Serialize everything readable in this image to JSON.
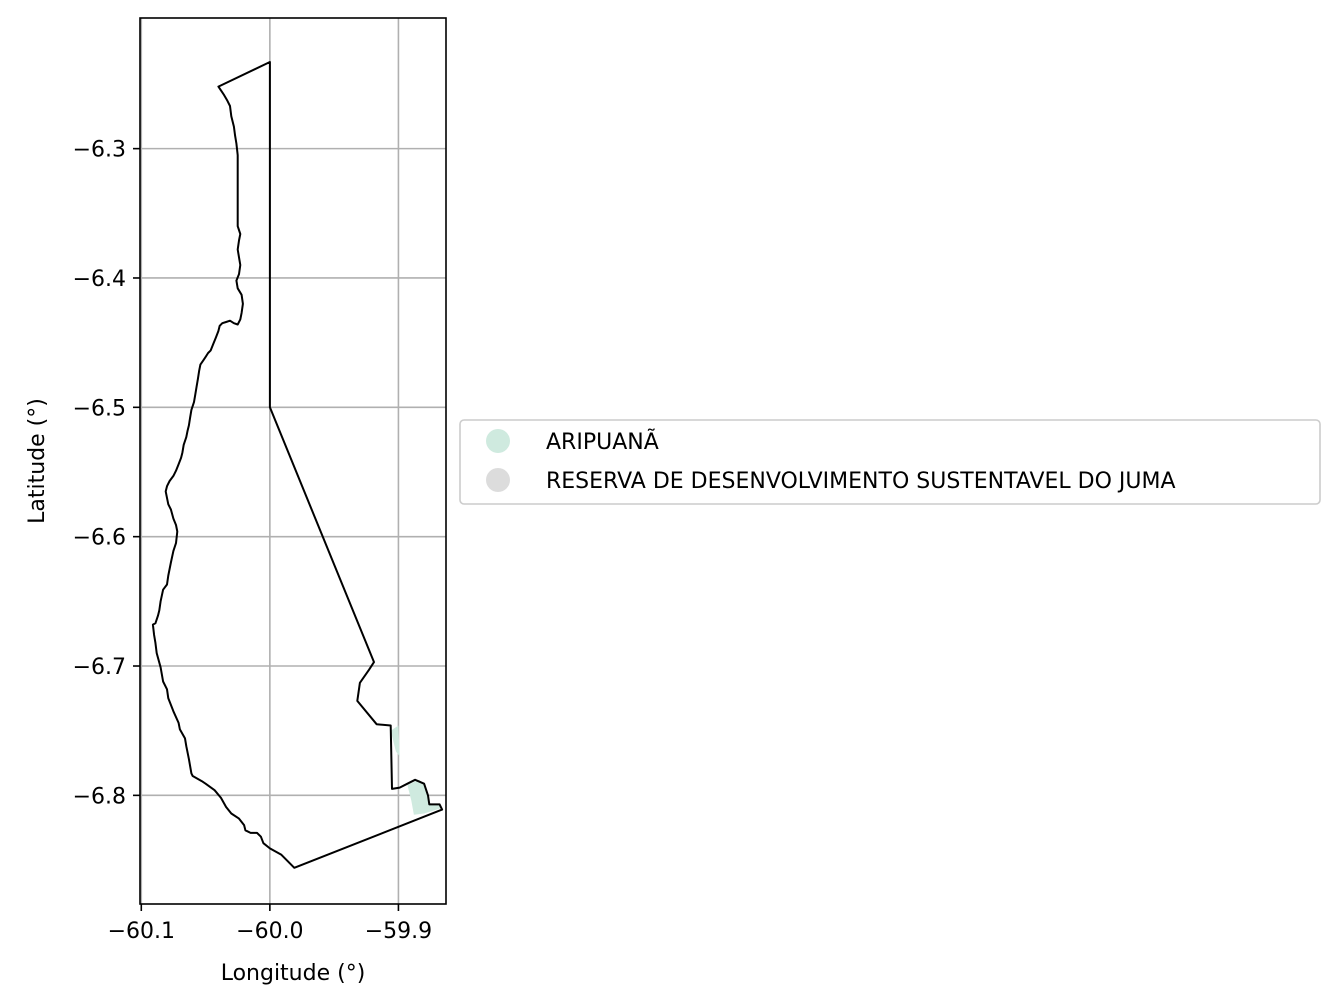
{
  "chart_data": {
    "type": "map",
    "xlabel": "Longitude (°)",
    "ylabel": "Latitude (°)",
    "xlim": [
      -60.101,
      -59.863
    ],
    "ylim": [
      -6.884,
      -6.199
    ],
    "grid": true,
    "x_ticks": [
      {
        "value": -60.1,
        "label": "−60.1"
      },
      {
        "value": -60.0,
        "label": "−60.0"
      },
      {
        "value": -59.9,
        "label": "−59.9"
      }
    ],
    "y_ticks": [
      {
        "value": -6.3,
        "label": "−6.3"
      },
      {
        "value": -6.4,
        "label": "−6.4"
      },
      {
        "value": -6.5,
        "label": "−6.5"
      },
      {
        "value": -6.6,
        "label": "−6.6"
      },
      {
        "value": -6.7,
        "label": "−6.7"
      },
      {
        "value": -6.8,
        "label": "−6.8"
      }
    ],
    "legend_position": "right",
    "legend": [
      {
        "label": "ARIPUANÃ",
        "color": "#cfeadf"
      },
      {
        "label": "RESERVA DE DESENVOLVIMENTO SUSTENTAVEL DO JUMA",
        "color": "#dcdcdc"
      }
    ],
    "outline_color": "#000000",
    "regions": [
      {
        "name": "ARIPUANÃ",
        "fill": "#cfeadf",
        "coords": [
          [
            -59.906,
            -6.75
          ],
          [
            -59.9,
            -6.746
          ],
          [
            -59.899,
            -6.77
          ],
          [
            -59.902,
            -6.766
          ],
          [
            -59.906,
            -6.75
          ]
        ]
      },
      {
        "name": "ARIPUANÃ",
        "fill": "#cfeadf",
        "coords": [
          [
            -59.893,
            -6.792
          ],
          [
            -59.884,
            -6.788
          ],
          [
            -59.88,
            -6.791
          ],
          [
            -59.877,
            -6.799
          ],
          [
            -59.876,
            -6.807
          ],
          [
            -59.869,
            -6.807
          ],
          [
            -59.867,
            -6.81
          ],
          [
            -59.88,
            -6.814
          ],
          [
            -59.888,
            -6.815
          ],
          [
            -59.89,
            -6.804
          ],
          [
            -59.893,
            -6.792
          ]
        ]
      },
      {
        "name": "RESERVA DE DESENVOLVIMENTO SUSTENTAVEL DO JUMA",
        "fill": "none",
        "coords": [
          [
            -60.0,
            -6.233
          ],
          [
            -60.0,
            -6.5
          ],
          [
            -59.919,
            -6.697
          ],
          [
            -59.923,
            -6.703
          ],
          [
            -59.93,
            -6.713
          ],
          [
            -59.932,
            -6.727
          ],
          [
            -59.917,
            -6.745
          ],
          [
            -59.906,
            -6.746
          ],
          [
            -59.905,
            -6.795
          ],
          [
            -59.899,
            -6.794
          ],
          [
            -59.893,
            -6.791
          ],
          [
            -59.887,
            -6.788
          ],
          [
            -59.88,
            -6.791
          ],
          [
            -59.877,
            -6.8
          ],
          [
            -59.876,
            -6.807
          ],
          [
            -59.868,
            -6.807
          ],
          [
            -59.866,
            -6.811
          ],
          [
            -59.981,
            -6.856
          ],
          [
            -59.985,
            -6.852
          ],
          [
            -59.991,
            -6.846
          ],
          [
            -60.0,
            -6.841
          ],
          [
            -60.005,
            -6.837
          ],
          [
            -60.007,
            -6.832
          ],
          [
            -60.01,
            -6.829
          ],
          [
            -60.015,
            -6.829
          ],
          [
            -60.019,
            -6.827
          ],
          [
            -60.02,
            -6.823
          ],
          [
            -60.024,
            -6.818
          ],
          [
            -60.03,
            -6.814
          ],
          [
            -60.034,
            -6.809
          ],
          [
            -60.038,
            -6.802
          ],
          [
            -60.043,
            -6.796
          ],
          [
            -60.05,
            -6.791
          ],
          [
            -60.053,
            -6.789
          ],
          [
            -60.06,
            -6.785
          ],
          [
            -60.061,
            -6.783
          ],
          [
            -60.063,
            -6.772
          ],
          [
            -60.065,
            -6.762
          ],
          [
            -60.066,
            -6.756
          ],
          [
            -60.07,
            -6.749
          ],
          [
            -60.071,
            -6.744
          ],
          [
            -60.075,
            -6.735
          ],
          [
            -60.079,
            -6.725
          ],
          [
            -60.08,
            -6.718
          ],
          [
            -60.083,
            -6.712
          ],
          [
            -60.085,
            -6.701
          ],
          [
            -60.088,
            -6.69
          ],
          [
            -60.089,
            -6.682
          ],
          [
            -60.09,
            -6.676
          ],
          [
            -60.091,
            -6.668
          ],
          [
            -60.089,
            -6.667
          ],
          [
            -60.087,
            -6.661
          ],
          [
            -60.086,
            -6.657
          ],
          [
            -60.085,
            -6.65
          ],
          [
            -60.083,
            -6.641
          ],
          [
            -60.08,
            -6.637
          ],
          [
            -60.079,
            -6.63
          ],
          [
            -60.077,
            -6.62
          ],
          [
            -60.075,
            -6.611
          ],
          [
            -60.073,
            -6.605
          ],
          [
            -60.072,
            -6.596
          ],
          [
            -60.073,
            -6.591
          ],
          [
            -60.075,
            -6.586
          ],
          [
            -60.077,
            -6.579
          ],
          [
            -60.079,
            -6.575
          ],
          [
            -60.08,
            -6.57
          ],
          [
            -60.081,
            -6.565
          ],
          [
            -60.08,
            -6.561
          ],
          [
            -60.078,
            -6.557
          ],
          [
            -60.075,
            -6.553
          ],
          [
            -60.073,
            -6.549
          ],
          [
            -60.071,
            -6.544
          ],
          [
            -60.069,
            -6.539
          ],
          [
            -60.068,
            -6.535
          ],
          [
            -60.067,
            -6.529
          ],
          [
            -60.065,
            -6.523
          ],
          [
            -60.064,
            -6.518
          ],
          [
            -60.063,
            -6.514
          ],
          [
            -60.062,
            -6.508
          ],
          [
            -60.061,
            -6.502
          ],
          [
            -60.059,
            -6.496
          ],
          [
            -60.058,
            -6.49
          ],
          [
            -60.057,
            -6.484
          ],
          [
            -60.056,
            -6.478
          ],
          [
            -60.055,
            -6.472
          ],
          [
            -60.054,
            -6.467
          ],
          [
            -60.052,
            -6.464
          ],
          [
            -60.05,
            -6.461
          ],
          [
            -60.048,
            -6.458
          ],
          [
            -60.046,
            -6.456
          ],
          [
            -60.044,
            -6.451
          ],
          [
            -60.042,
            -6.446
          ],
          [
            -60.04,
            -6.441
          ],
          [
            -60.039,
            -6.437
          ],
          [
            -60.037,
            -6.435
          ],
          [
            -60.034,
            -6.434
          ],
          [
            -60.031,
            -6.433
          ],
          [
            -60.028,
            -6.435
          ],
          [
            -60.025,
            -6.436
          ],
          [
            -60.023,
            -6.432
          ],
          [
            -60.022,
            -6.427
          ],
          [
            -60.021,
            -6.42
          ],
          [
            -60.022,
            -6.413
          ],
          [
            -60.025,
            -6.408
          ],
          [
            -60.026,
            -6.402
          ],
          [
            -60.024,
            -6.397
          ],
          [
            -60.023,
            -6.39
          ],
          [
            -60.024,
            -6.384
          ],
          [
            -60.025,
            -6.378
          ],
          [
            -60.024,
            -6.371
          ],
          [
            -60.023,
            -6.366
          ],
          [
            -60.025,
            -6.36
          ],
          [
            -60.025,
            -6.352
          ],
          [
            -60.025,
            -6.343
          ],
          [
            -60.025,
            -6.335
          ],
          [
            -60.025,
            -6.325
          ],
          [
            -60.025,
            -6.315
          ],
          [
            -60.025,
            -6.305
          ],
          [
            -60.026,
            -6.296
          ],
          [
            -60.027,
            -6.29
          ],
          [
            -60.028,
            -6.283
          ],
          [
            -60.03,
            -6.275
          ],
          [
            -60.031,
            -6.267
          ],
          [
            -60.033,
            -6.263
          ],
          [
            -60.036,
            -6.258
          ],
          [
            -60.038,
            -6.255
          ],
          [
            -60.04,
            -6.252
          ],
          [
            -60.0,
            -6.233
          ]
        ]
      }
    ]
  }
}
